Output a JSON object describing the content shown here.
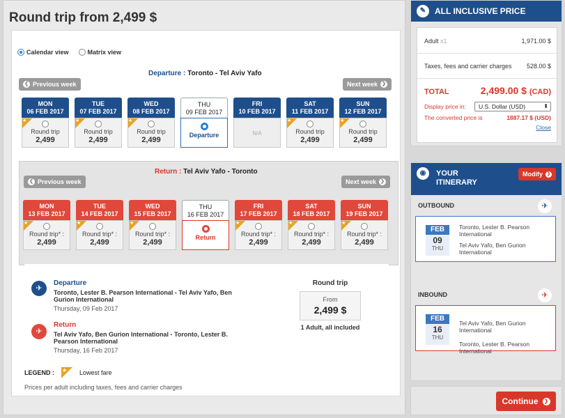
{
  "page_title": "Round trip from 2,499 $",
  "views": {
    "calendar": "Calendar view",
    "matrix": "Matrix view"
  },
  "nav": {
    "previous_week": "Previous week",
    "next_week": "Next week",
    "arrow_left": "❮",
    "arrow_right": "❯"
  },
  "departure": {
    "label": "Departure :",
    "route": "Toronto - Tel Aviv Yafo",
    "days": [
      {
        "day": "MON",
        "date": "06 FEB 2017",
        "label": "Round trip",
        "price": "2,499",
        "lowest": true
      },
      {
        "day": "TUE",
        "date": "07 FEB 2017",
        "label": "Round trip",
        "price": "2,499",
        "lowest": true
      },
      {
        "day": "WED",
        "date": "08 FEB 2017",
        "label": "Round trip",
        "price": "2,499",
        "lowest": true
      },
      {
        "day": "THU",
        "date": "09 FEB 2017",
        "label": "Departure",
        "selected": true
      },
      {
        "day": "FRI",
        "date": "10 FEB 2017",
        "label": "N/A",
        "na": true
      },
      {
        "day": "SAT",
        "date": "11 FEB 2017",
        "label": "Round trip",
        "price": "2,499",
        "lowest": true
      },
      {
        "day": "SUN",
        "date": "12 FEB 2017",
        "label": "Round trip",
        "price": "2,499",
        "lowest": true
      }
    ]
  },
  "return": {
    "label": "Return :",
    "route": "Tel Aviv Yafo - Toronto",
    "days": [
      {
        "day": "MON",
        "date": "13 FEB 2017",
        "label": "Round trip* :",
        "price": "2,499",
        "lowest": true
      },
      {
        "day": "TUE",
        "date": "14 FEB 2017",
        "label": "Round trip* :",
        "price": "2,499",
        "lowest": true
      },
      {
        "day": "WED",
        "date": "15 FEB 2017",
        "label": "Round trip* :",
        "price": "2,499",
        "lowest": true
      },
      {
        "day": "THU",
        "date": "16 FEB 2017",
        "label": "Return",
        "selected": true
      },
      {
        "day": "FRI",
        "date": "17 FEB 2017",
        "label": "Round trip* :",
        "price": "2,499",
        "lowest": true
      },
      {
        "day": "SAT",
        "date": "18 FEB 2017",
        "label": "Round trip* :",
        "price": "2,499",
        "lowest": true
      },
      {
        "day": "SUN",
        "date": "19 FEB 2017",
        "label": "Round trip* :",
        "price": "2,499",
        "lowest": true
      }
    ]
  },
  "summary": {
    "departure": {
      "title": "Departure",
      "route": "Toronto, Lester B. Pearson International - Tel Aviv Yafo, Ben Gurion International",
      "date": "Thursday, 09 Feb 2017"
    },
    "return": {
      "title": "Return",
      "route": "Tel Aviv Yafo, Ben Gurion International - Toronto, Lester B. Pearson International",
      "date": "Thursday, 16 Feb 2017"
    },
    "round_trip_title": "Round trip",
    "from_label": "From",
    "price": "2,499 $",
    "pax": "1 Adult, all included"
  },
  "legend": {
    "label": "LEGEND :",
    "lowest_fare": "Lowest fare"
  },
  "note": "Prices per adult including taxes, fees and carrier charges",
  "price_card": {
    "title": "ALL INCLUSIVE PRICE",
    "adult_label": "Adult",
    "adult_count": "x1",
    "adult_price": "1,971.00 $",
    "taxes_label": "Taxes, fees and carrier charges",
    "taxes_price": "528.00 $",
    "total_label": "TOTAL",
    "total_value": "2,499.00 $",
    "total_currency": "(CAD)",
    "display_label": "Display price in:",
    "display_value": "U.S. Dollar (USD)",
    "converted_label": "The converted price is",
    "converted_value": "1887.17 $ (USD)",
    "close": "Close"
  },
  "itinerary": {
    "title_line1": "YOUR",
    "title_line2": "ITINERARY",
    "modify": "Modify",
    "outbound": {
      "label": "OUTBOUND",
      "month": "FEB",
      "day": "09",
      "weekday": "THU",
      "from": "Toronto, Lester B. Pearson International",
      "to": "Tel Aviv Yafo, Ben Gurion International"
    },
    "inbound": {
      "label": "INBOUND",
      "month": "FEB",
      "day": "16",
      "weekday": "THU",
      "from": "Tel Aviv Yafo, Ben Gurion International",
      "to": "Toronto, Lester B. Pearson International"
    }
  },
  "continue": "Continue",
  "icons": {
    "tag": "tag-icon",
    "plane": "plane-icon",
    "globe": "globe-icon"
  },
  "colors": {
    "brand_blue": "#1e4f8c",
    "accent_red": "#d9372a",
    "lowest_fare": "#e8a323"
  }
}
